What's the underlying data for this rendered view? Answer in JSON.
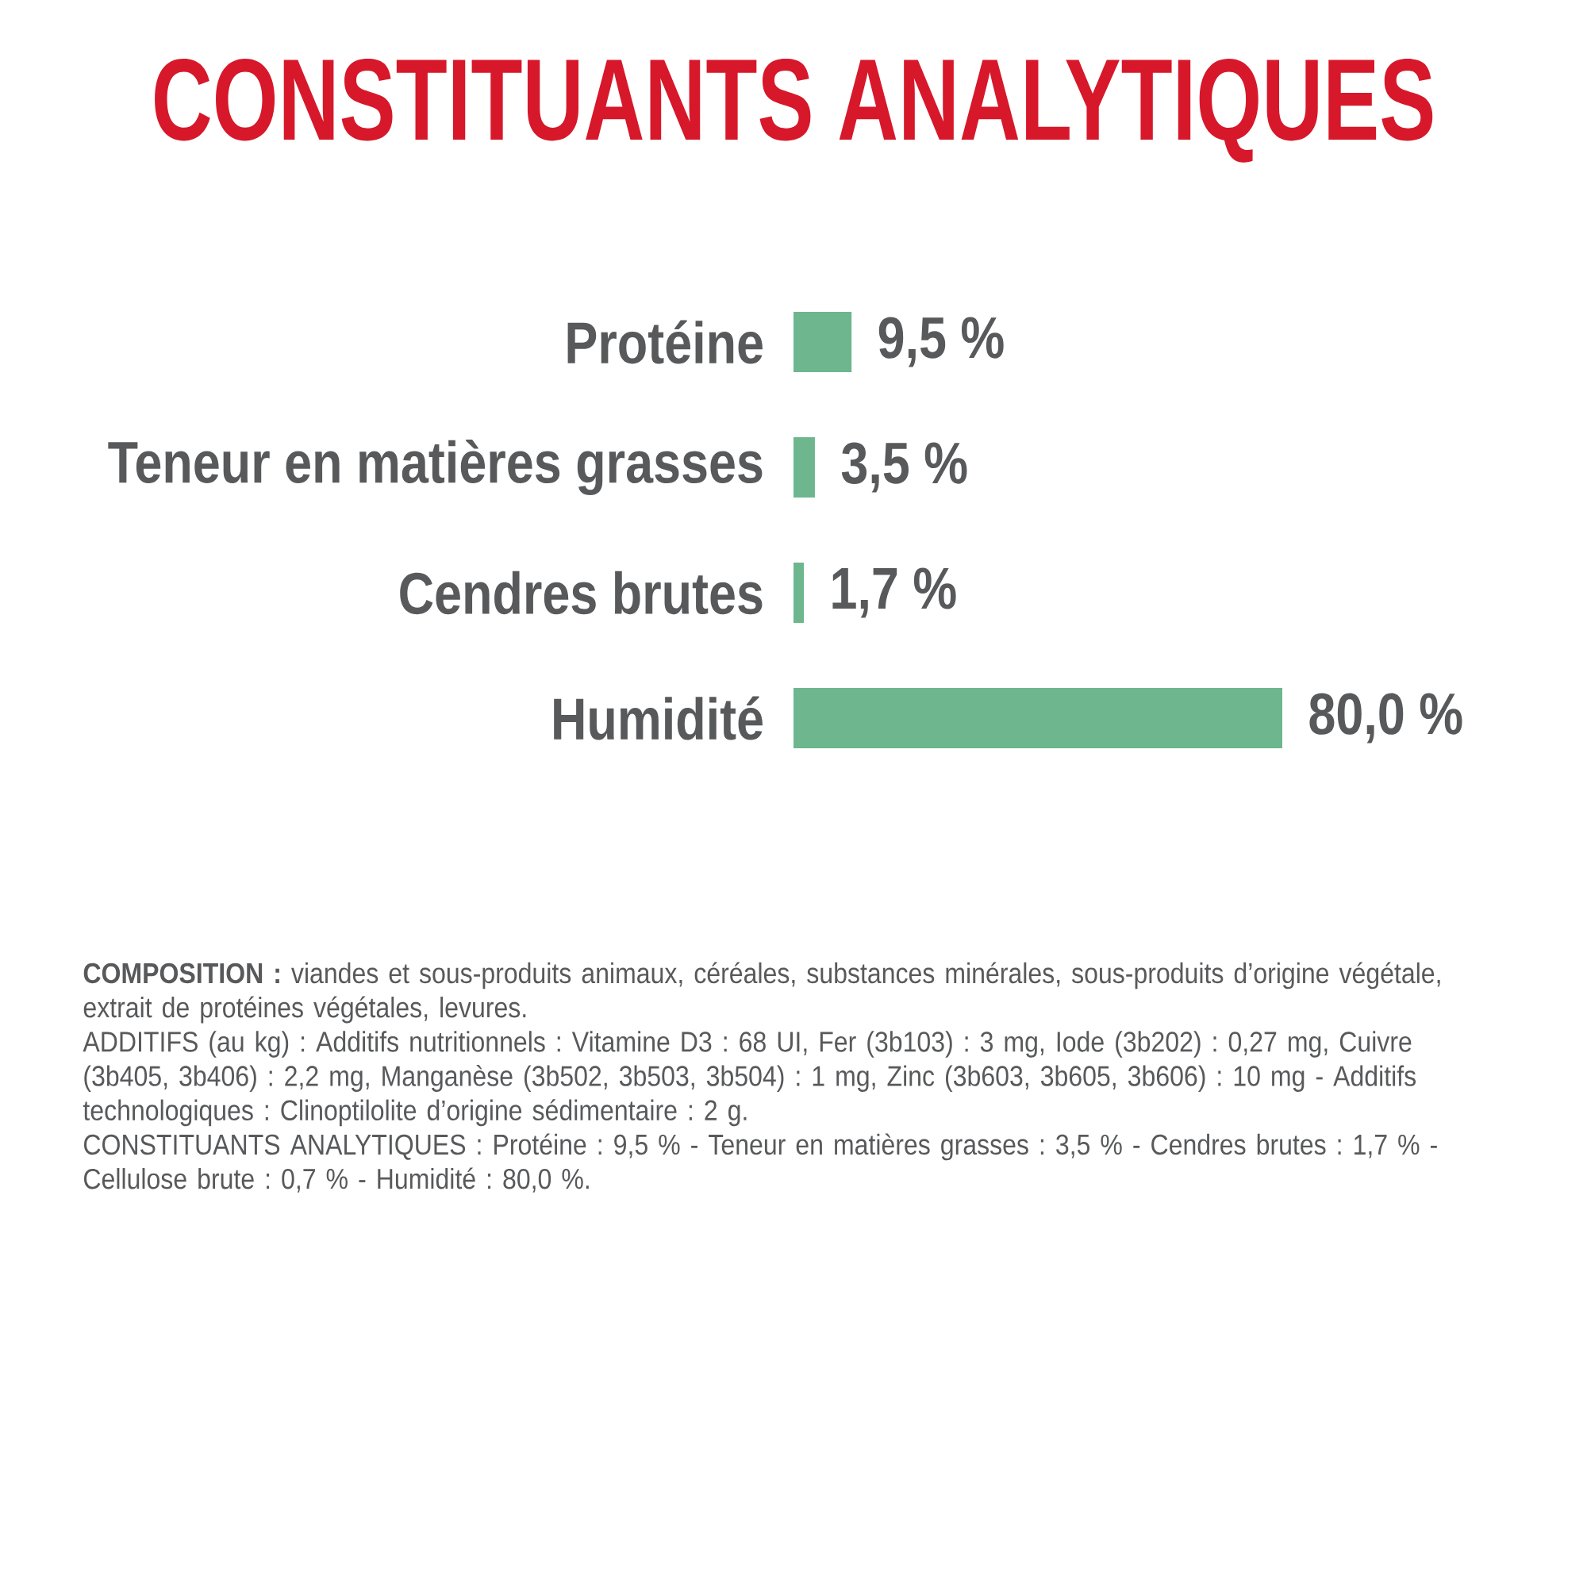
{
  "chart_data": {
    "type": "bar",
    "orientation": "horizontal",
    "title": "CONSTITUANTS ANALYTIQUES",
    "categories": [
      "Protéine",
      "Teneur en matières grasses",
      "Cendres brutes",
      "Humidité"
    ],
    "values": [
      9.5,
      3.5,
      1.7,
      80.0
    ],
    "color": "#6db68e",
    "value_labels": [
      "9,5 %",
      "3,5 %",
      "1,7 %",
      "80,0 %"
    ],
    "annotations": [
      "**COMPOSITION :** viandes et sous-produits animaux, céréales, substances minérales, sous-produits d’origine végétale, extrait de protéines végétales, levures.",
      "ADDITIFS (au kg) : Additifs nutritionnels : Vitamine D3 : 68 UI, Fer (3b103) : 3 mg, Iode (3b202) : 0,27 mg, Cuivre (3b405, 3b406) : 2,2 mg, Manganèse (3b502, 3b503, 3b504) : 1 mg, Zinc (3b603, 3b605, 3b606) : 10 mg - Additifs technologiques : Clinoptilolite d’origine sédimentaire : 2 g.",
      "CONSTITUANTS ANALYTIQUES : Protéine : 9,5 % - Teneur en matières grasses : 3,5 % - Cendres brutes : 1,7 % - Cellulose brute : 0,7 % - Humidité : 80,0 %."
    ]
  }
}
